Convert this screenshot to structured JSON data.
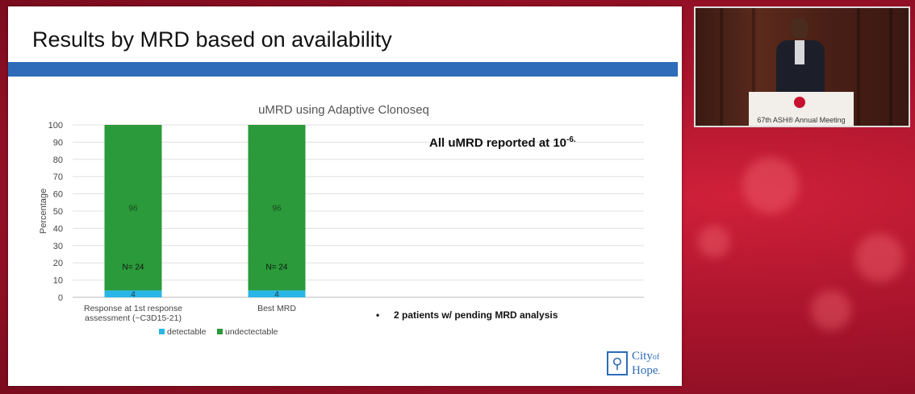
{
  "slide": {
    "title": "Results by MRD based on availability",
    "callout_text": "All uMRD reported at 10",
    "callout_exponent": "-6.",
    "bullet_text": "2 patients w/ pending MRD analysis",
    "bullet_symbol": "•",
    "logo_line1": "City",
    "logo_line1_small": "of",
    "logo_line2": "Hope",
    "logo_line2_small": "."
  },
  "video": {
    "podium_caption": "67th ASH® Annual Meeting"
  },
  "colors": {
    "accent_bar": "#2e6bb8",
    "detectable": "#29b6e6",
    "undetectable": "#2a9a3a",
    "background": "#b5152f"
  },
  "chart_data": {
    "type": "bar",
    "stacked": true,
    "title": "uMRD using Adaptive Clonoseq",
    "xlabel": "",
    "ylabel": "Percentage",
    "ylim": [
      0,
      100
    ],
    "yticks": [
      0,
      10,
      20,
      30,
      40,
      50,
      60,
      70,
      80,
      90,
      100
    ],
    "grid": true,
    "legend_position": "bottom",
    "categories": [
      [
        "Response at 1st response",
        "assessment (~C3D15-21)"
      ],
      [
        "Best MRD"
      ]
    ],
    "series": [
      {
        "name": "detectable",
        "values": [
          4,
          4
        ],
        "labels": [
          "4",
          "4"
        ]
      },
      {
        "name": "undectectable",
        "values": [
          96,
          96
        ],
        "labels": [
          "96",
          "96"
        ]
      }
    ],
    "annotations": [
      "N= 24",
      "N= 24"
    ]
  }
}
